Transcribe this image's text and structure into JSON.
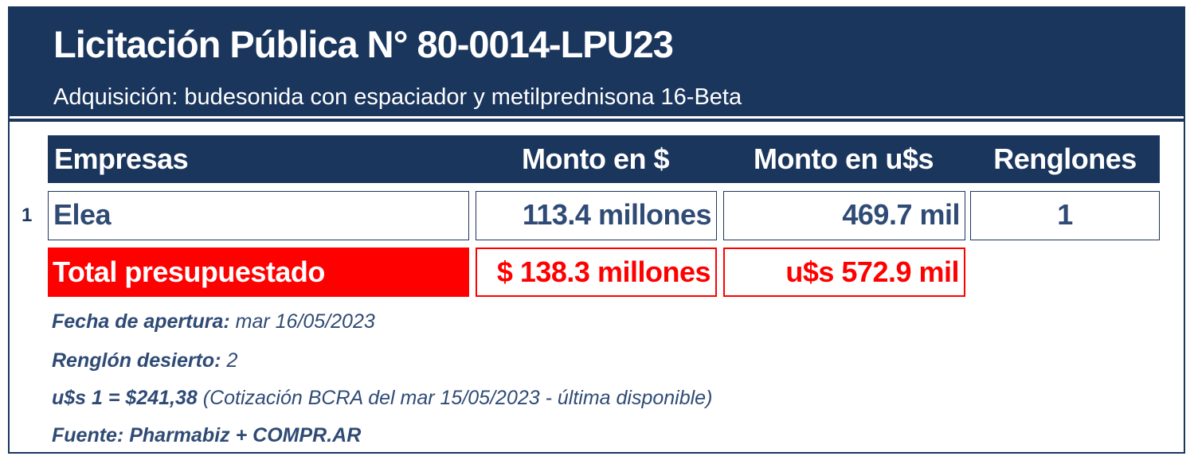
{
  "header": {
    "title": "Licitación Pública N° 80-0014-LPU23",
    "subtitle": "Adquisición: budesonida con espaciador y metilprednisona 16-Beta"
  },
  "table": {
    "columns": [
      "Empresas",
      "Monto en $",
      "Monto en u$s",
      "Renglones"
    ],
    "rows": [
      {
        "index": "1",
        "empresa": "Elea",
        "monto_pesos": "113.4 millones",
        "monto_usd": "469.7 mil",
        "renglones": "1"
      }
    ],
    "total": {
      "label": "Total presupuestado",
      "monto_pesos": "$ 138.3 millones",
      "monto_usd": "u$s 572.9 mil"
    }
  },
  "notes": {
    "apertura_label": "Fecha de apertura:",
    "apertura_value": "mar 16/05/2023",
    "desierto_label": "Renglón desierto:",
    "desierto_value": "2",
    "cotizacion_label": "u$s 1 = $241,38",
    "cotizacion_value": "(Cotización BCRA del mar 15/05/2023 - última disponible)",
    "fuente": "Fuente: Pharmabiz + COMPR.AR"
  },
  "colors": {
    "navy": "#1b365d",
    "text_blue": "#2f4b75",
    "red": "#ff0000",
    "white": "#ffffff"
  }
}
